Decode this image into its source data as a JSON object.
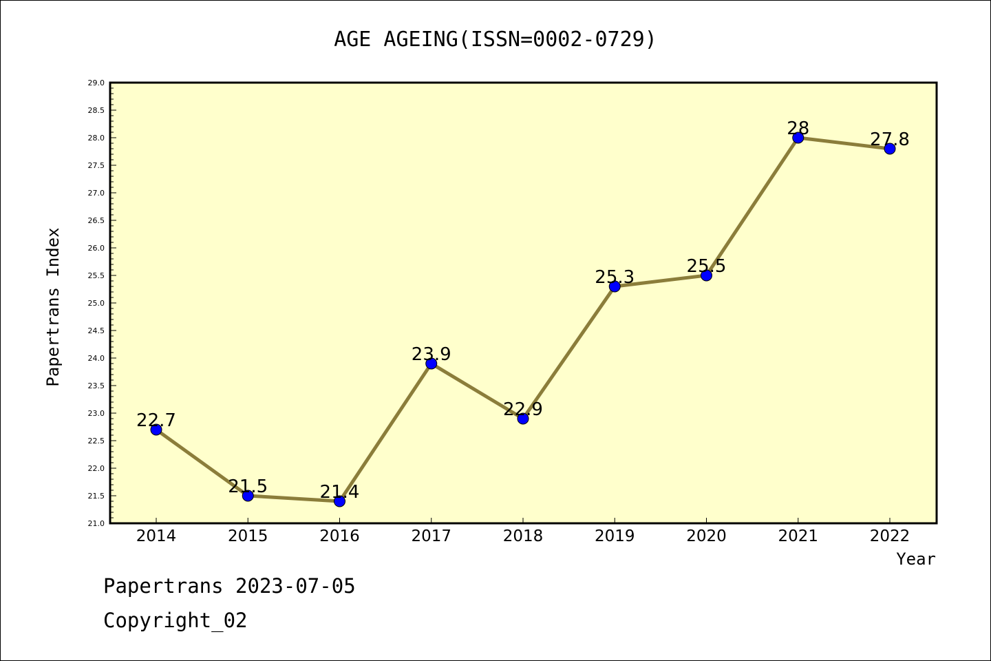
{
  "chart_data": {
    "type": "line",
    "title": "AGE AGEING(ISSN=0002-0729)",
    "xlabel": "Year",
    "ylabel": "Papertrans Index",
    "x": [
      "2014",
      "2015",
      "2016",
      "2017",
      "2018",
      "2019",
      "2020",
      "2021",
      "2022"
    ],
    "values": [
      22.7,
      21.5,
      21.4,
      23.9,
      22.9,
      25.3,
      25.5,
      28,
      27.8
    ],
    "data_labels": [
      "22.7",
      "21.5",
      "21.4",
      "23.9",
      "22.9",
      "25.3",
      "25.5",
      "28",
      "27.8"
    ],
    "ylim": [
      21.0,
      29.0
    ],
    "y_ticks": [
      "21.0",
      "21.5",
      "22.0",
      "22.5",
      "23.0",
      "23.5",
      "24.0",
      "24.5",
      "25.0",
      "25.5",
      "26.0",
      "26.5",
      "27.0",
      "27.5",
      "28.0",
      "28.5",
      "29.0"
    ],
    "grid": false,
    "legend": "none",
    "colors": {
      "line": "#8b7d3a",
      "marker": "#0000ff",
      "plot_background": "#ffffcc"
    }
  },
  "footer": {
    "line1": "Papertrans 2023-07-05",
    "line2": "Copyright_02"
  }
}
